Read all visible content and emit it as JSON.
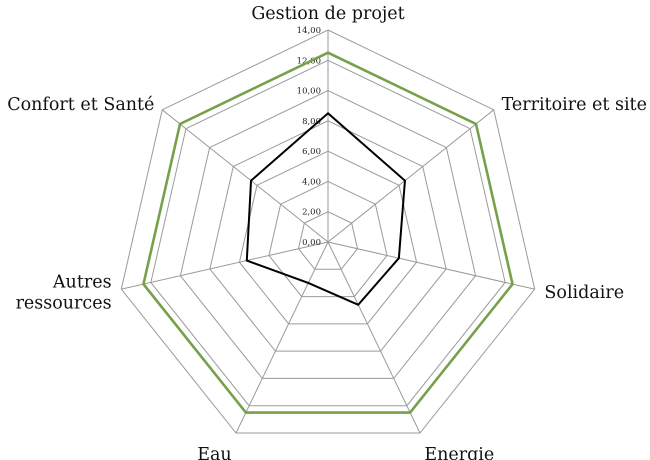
{
  "chart_data": {
    "type": "radar",
    "categories": [
      "Gestion de projet",
      "Territoire et site",
      "Solidaire",
      "Energie",
      "Eau",
      "Autres ressources",
      "Confort et Santé"
    ],
    "category_label_lines": [
      [
        "Gestion de projet"
      ],
      [
        "Territoire et site"
      ],
      [
        "Solidaire"
      ],
      [
        "Energie"
      ],
      [
        "Eau"
      ],
      [
        "Autres",
        "ressources"
      ],
      [
        "Confort et Santé"
      ]
    ],
    "ticks": [
      "0,00",
      "2,00",
      "4,00",
      "6,00",
      "8,00",
      "10,00",
      "12,00",
      "14,00"
    ],
    "rmin": 0,
    "rmax": 14,
    "grid": true,
    "series": [
      {
        "values": [
          12.5,
          12.5,
          12.5,
          12.5,
          12.5,
          12.5,
          12.5
        ],
        "color": "#77a04a"
      },
      {
        "values": [
          8.5,
          6.5,
          4.8,
          4.6,
          3.0,
          5.5,
          6.5
        ],
        "color": "#000000"
      }
    ]
  }
}
